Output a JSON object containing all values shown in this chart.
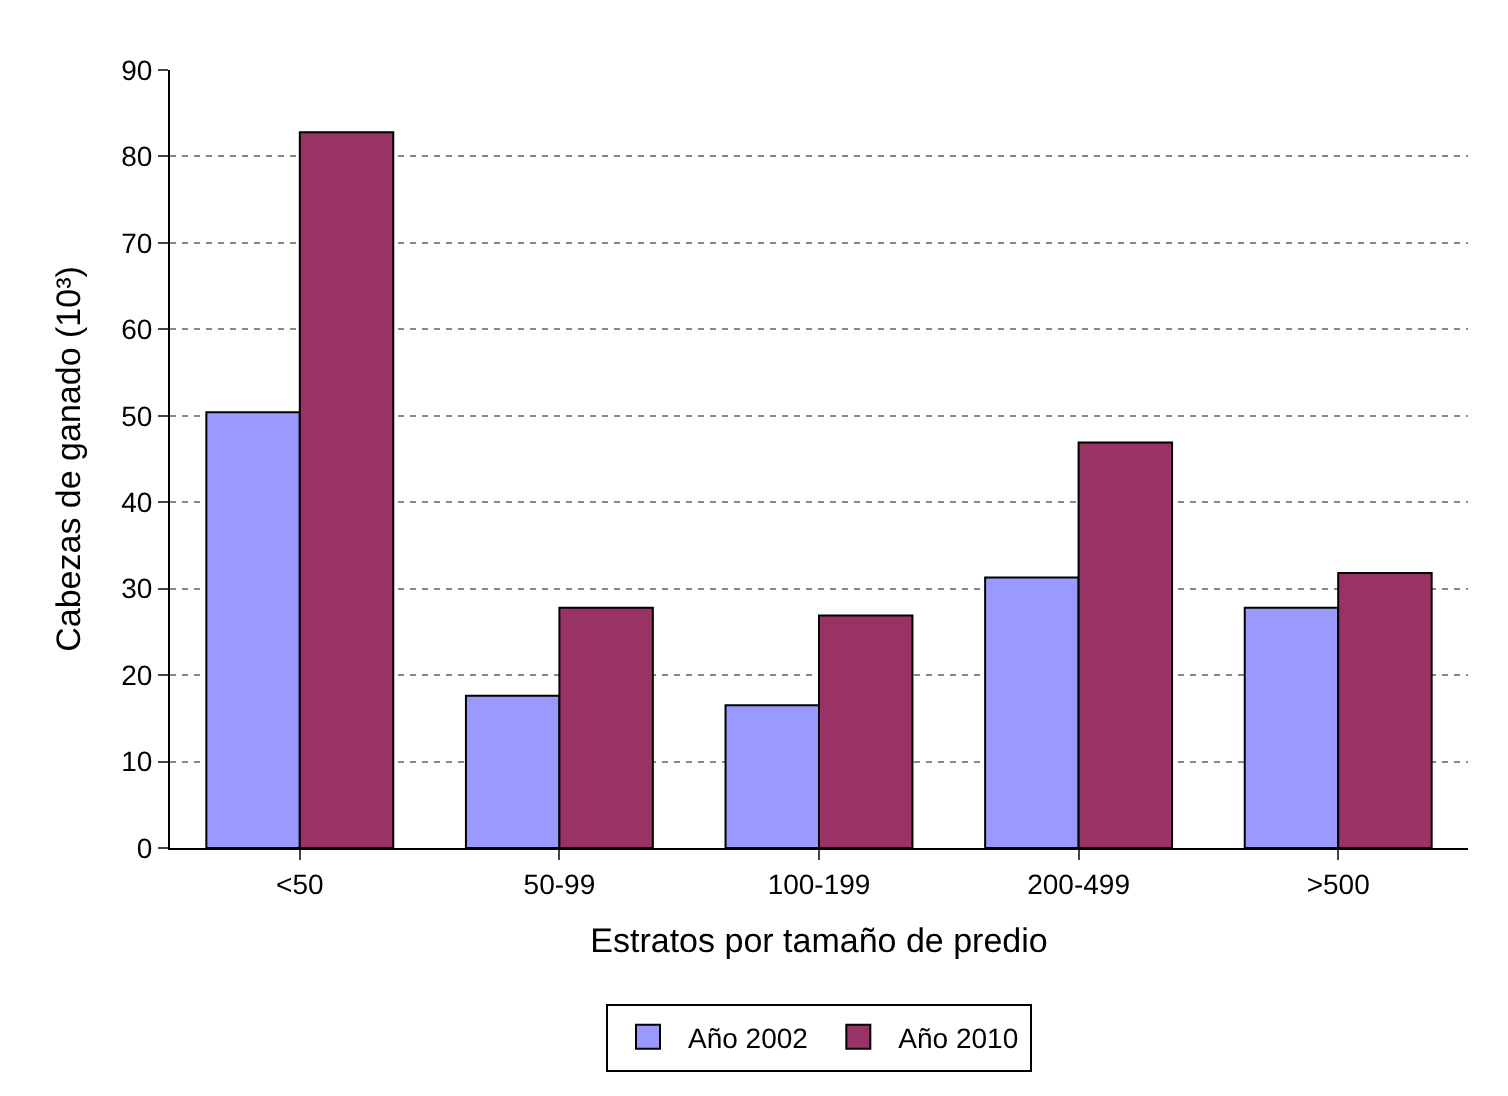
{
  "chart_data": {
    "type": "bar",
    "xlabel": "Estratos por tamaño de predio",
    "ylabel": "Cabezas de ganado (10³)",
    "categories": [
      "<50",
      "50-99",
      "100-199",
      "200-499",
      ">500"
    ],
    "series": [
      {
        "name": "Año 2002",
        "color": "#9999ff",
        "values": [
          50.4,
          17.6,
          16.5,
          31.3,
          27.8
        ]
      },
      {
        "name": "Año 2010",
        "color": "#993366",
        "values": [
          82.8,
          27.8,
          26.9,
          46.9,
          31.8
        ]
      }
    ],
    "ylim": [
      0,
      90
    ],
    "yticks": [
      0,
      10,
      20,
      30,
      40,
      50,
      60,
      70,
      80,
      90
    ],
    "grid": "y",
    "legend": "bottom"
  }
}
